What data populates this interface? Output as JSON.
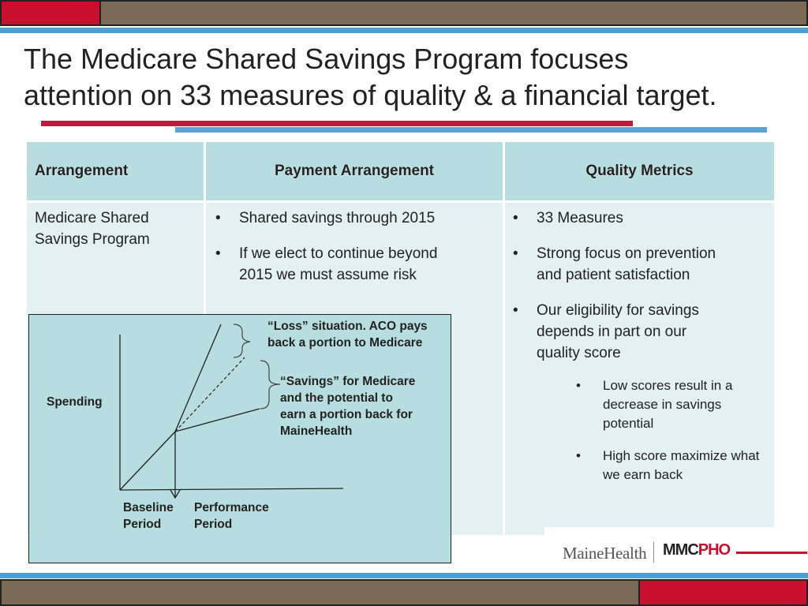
{
  "slide": {
    "title_line1": "The Medicare Shared Savings Program focuses",
    "title_line2": "attention on 33 measures of quality & a financial target."
  },
  "table": {
    "headers": [
      "Arrangement",
      "Payment Arrangement",
      "Quality Metrics"
    ],
    "arrangement_line1": "Medicare Shared",
    "arrangement_line2": "Savings Program",
    "payment_bullets": [
      [
        "Shared savings through 2015"
      ],
      [
        "If we elect to continue beyond",
        "2015 we must assume risk"
      ]
    ],
    "quality_bullets": [
      [
        "33 Measures"
      ],
      [
        "Strong focus on prevention",
        "and patient satisfaction"
      ],
      [
        "Our eligibility for savings",
        "depends in part on our",
        "quality score"
      ]
    ],
    "quality_sub_bullets": [
      [
        "Low scores result in a",
        "decrease in savings",
        "potential"
      ],
      [
        "High score maximize what",
        "we earn back"
      ]
    ],
    "bullet_glyph": "•"
  },
  "diagram": {
    "y_label": "Spending",
    "loss_label": [
      "“Loss” situation.  ACO pays",
      "back a portion to Medicare"
    ],
    "savings_label": [
      "“Savings” for Medicare",
      "and the potential to",
      "earn a portion back for",
      "MaineHealth"
    ],
    "baseline_label": [
      "Baseline",
      "Period"
    ],
    "performance_label": [
      "Performance",
      "Period"
    ]
  },
  "footer": {
    "logo_mainehealth": "MaineHealth",
    "logo_mmc": "MMC",
    "logo_pho": "PHO"
  },
  "colors": {
    "accent_red": "#c8102e",
    "accent_blue": "#4a9fd5",
    "banner_brown": "#7b6a55",
    "header_teal": "#b8dde0",
    "cell_teal": "#e3f1f2"
  }
}
